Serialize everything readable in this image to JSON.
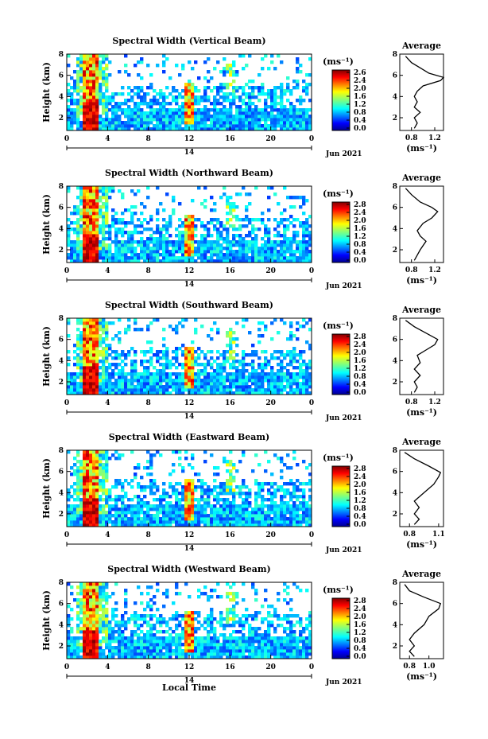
{
  "figure": {
    "xlabel": "Local Time",
    "date_label": "Jun 2021",
    "day_label": "14",
    "height_label": "Height (km)",
    "colorbar_unit": "(ms⁻¹)",
    "average_title": "Average",
    "average_xlabel": "(ms⁻¹)"
  },
  "chart_data": [
    {
      "type": "heatmap",
      "title": "Spectral Width (Vertical Beam)",
      "ylabel": "Height (km)",
      "x_ticks": [
        "0",
        "4",
        "8",
        "12",
        "16",
        "20",
        "0"
      ],
      "y_ticks": [
        "8",
        "6",
        "4",
        "2"
      ],
      "xlim": [
        0,
        24
      ],
      "ylim": [
        0.8,
        8
      ],
      "colorbar": {
        "ticks": [
          "2.6",
          "2.4",
          "2.0",
          "1.6",
          "1.2",
          "0.8",
          "0.4",
          "0.0"
        ],
        "range": [
          0.0,
          2.8
        ],
        "colormap": "jet"
      },
      "average": {
        "title": "Average",
        "x_ticks": [
          "0.8",
          "1.2"
        ],
        "xlim": [
          0.6,
          1.35
        ],
        "y_ticks": [
          "8",
          "6",
          "4",
          "2"
        ],
        "profile": [
          [
            0.85,
            1.0
          ],
          [
            0.9,
            1.5
          ],
          [
            0.85,
            2.0
          ],
          [
            0.95,
            2.5
          ],
          [
            0.85,
            3.0
          ],
          [
            0.9,
            3.5
          ],
          [
            0.85,
            4.0
          ],
          [
            0.9,
            4.5
          ],
          [
            1.0,
            5.0
          ],
          [
            1.3,
            5.5
          ],
          [
            1.35,
            5.8
          ],
          [
            1.1,
            6.2
          ],
          [
            0.95,
            6.7
          ],
          [
            0.8,
            7.2
          ],
          [
            0.7,
            7.8
          ]
        ]
      }
    },
    {
      "type": "heatmap",
      "title": "Spectral Width (Northward Beam)",
      "ylabel": "Height (km)",
      "x_ticks": [
        "0",
        "4",
        "8",
        "12",
        "16",
        "20",
        "0"
      ],
      "y_ticks": [
        "8",
        "6",
        "4",
        "2"
      ],
      "xlim": [
        0,
        24
      ],
      "ylim": [
        0.8,
        8
      ],
      "colorbar": {
        "ticks": [
          "2.8",
          "2.4",
          "2.0",
          "1.6",
          "1.2",
          "0.8",
          "0.4",
          "0.0"
        ],
        "range": [
          0.0,
          2.8
        ],
        "colormap": "jet"
      },
      "average": {
        "title": "Average",
        "x_ticks": [
          "0.8",
          "1.2"
        ],
        "xlim": [
          0.6,
          1.35
        ],
        "y_ticks": [
          "8",
          "6",
          "4",
          "2"
        ],
        "profile": [
          [
            0.85,
            1.0
          ],
          [
            0.9,
            1.5
          ],
          [
            0.95,
            2.0
          ],
          [
            1.05,
            2.8
          ],
          [
            0.95,
            3.3
          ],
          [
            0.9,
            3.8
          ],
          [
            1.0,
            4.5
          ],
          [
            1.15,
            5.0
          ],
          [
            1.25,
            5.6
          ],
          [
            1.15,
            6.0
          ],
          [
            0.95,
            6.5
          ],
          [
            0.8,
            7.2
          ],
          [
            0.7,
            7.8
          ]
        ]
      }
    },
    {
      "type": "heatmap",
      "title": "Spectral Width (Southward Beam)",
      "ylabel": "Height (km)",
      "x_ticks": [
        "0",
        "4",
        "8",
        "12",
        "16",
        "20",
        "0"
      ],
      "y_ticks": [
        "8",
        "6",
        "4",
        "2"
      ],
      "xlim": [
        0,
        24
      ],
      "ylim": [
        0.8,
        8
      ],
      "colorbar": {
        "ticks": [
          "2.8",
          "2.4",
          "2.0",
          "1.6",
          "1.2",
          "0.8",
          "0.4",
          "0.0"
        ],
        "range": [
          0.0,
          2.8
        ],
        "colormap": "jet"
      },
      "average": {
        "title": "Average",
        "x_ticks": [
          "0.8",
          "1.2"
        ],
        "xlim": [
          0.6,
          1.35
        ],
        "y_ticks": [
          "8",
          "6",
          "4",
          "2"
        ],
        "profile": [
          [
            0.85,
            1.0
          ],
          [
            0.9,
            1.5
          ],
          [
            0.85,
            2.0
          ],
          [
            0.95,
            2.6
          ],
          [
            0.85,
            3.2
          ],
          [
            0.95,
            3.8
          ],
          [
            0.9,
            4.5
          ],
          [
            1.05,
            5.0
          ],
          [
            1.2,
            5.5
          ],
          [
            1.25,
            6.0
          ],
          [
            1.05,
            6.6
          ],
          [
            0.85,
            7.2
          ],
          [
            0.7,
            7.8
          ]
        ]
      }
    },
    {
      "type": "heatmap",
      "title": "Spectral Width (Eastward Beam)",
      "ylabel": "Height (km)",
      "x_ticks": [
        "0",
        "4",
        "8",
        "12",
        "16",
        "20",
        "0"
      ],
      "y_ticks": [
        "8",
        "6",
        "4",
        "2"
      ],
      "xlim": [
        0,
        24
      ],
      "ylim": [
        0.8,
        8
      ],
      "colorbar": {
        "ticks": [
          "2.8",
          "2.4",
          "2.0",
          "1.6",
          "1.2",
          "0.8",
          "0.4",
          "0.0"
        ],
        "range": [
          0.0,
          2.8
        ],
        "colormap": "jet"
      },
      "average": {
        "title": "Average",
        "x_ticks": [
          "0.8",
          "1.1"
        ],
        "xlim": [
          0.7,
          1.15
        ],
        "y_ticks": [
          "8",
          "6",
          "4",
          "2"
        ],
        "profile": [
          [
            0.85,
            1.0
          ],
          [
            0.9,
            1.5
          ],
          [
            0.85,
            2.0
          ],
          [
            0.9,
            2.6
          ],
          [
            0.85,
            3.2
          ],
          [
            0.95,
            4.0
          ],
          [
            1.05,
            4.8
          ],
          [
            1.1,
            5.5
          ],
          [
            1.12,
            5.9
          ],
          [
            1.0,
            6.5
          ],
          [
            0.85,
            7.2
          ],
          [
            0.75,
            7.8
          ]
        ]
      }
    },
    {
      "type": "heatmap",
      "title": "Spectral Width (Westward Beam)",
      "ylabel": "Height (km)",
      "x_ticks": [
        "0",
        "4",
        "8",
        "12",
        "16",
        "20",
        "0"
      ],
      "y_ticks": [
        "8",
        "6",
        "4",
        "2"
      ],
      "xlim": [
        0,
        24
      ],
      "ylim": [
        0.8,
        8
      ],
      "colorbar": {
        "ticks": [
          "2.8",
          "2.4",
          "2.0",
          "1.6",
          "1.2",
          "0.8",
          "0.4",
          "0.0"
        ],
        "range": [
          0.0,
          2.8
        ],
        "colormap": "jet"
      },
      "average": {
        "title": "Average",
        "x_ticks": [
          "0.8",
          "1.0"
        ],
        "xlim": [
          0.7,
          1.15
        ],
        "y_ticks": [
          "8",
          "6",
          "4",
          "2"
        ],
        "profile": [
          [
            0.85,
            1.0
          ],
          [
            0.8,
            1.5
          ],
          [
            0.85,
            2.0
          ],
          [
            0.8,
            2.6
          ],
          [
            0.85,
            3.2
          ],
          [
            0.95,
            4.0
          ],
          [
            1.0,
            4.8
          ],
          [
            1.1,
            5.5
          ],
          [
            1.12,
            6.0
          ],
          [
            0.95,
            6.6
          ],
          [
            0.8,
            7.2
          ],
          [
            0.75,
            7.8
          ]
        ]
      }
    }
  ]
}
